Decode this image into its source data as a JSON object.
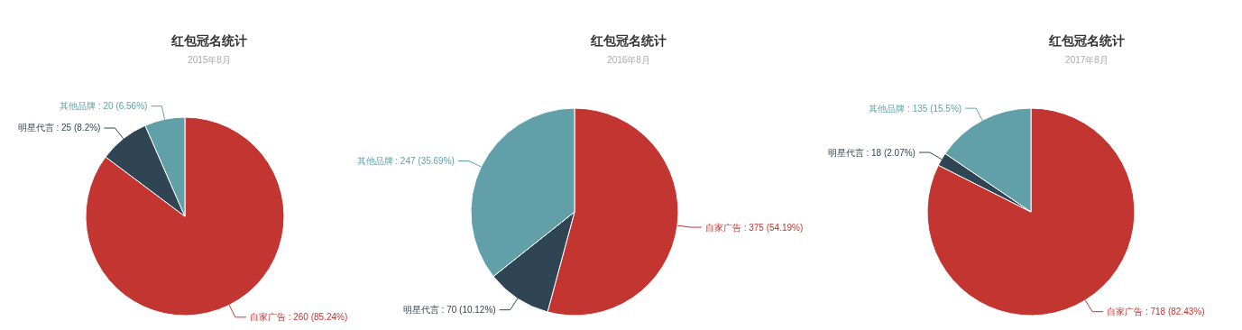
{
  "chart_data": [
    {
      "type": "pie",
      "title": "红包冠名统计",
      "subtitle": "2015年8月",
      "categories": [
        "自家广告",
        "明星代言",
        "其他品牌"
      ],
      "values": [
        260,
        25,
        20
      ],
      "colors": [
        "#c23531",
        "#2f4554",
        "#61a0a8"
      ],
      "value_labels": [
        "260 (85.24%)",
        "25 (8.2%)",
        "20 (6.56%)"
      ]
    },
    {
      "type": "pie",
      "title": "红包冠名统计",
      "subtitle": "2016年8月",
      "categories": [
        "自家广告",
        "明星代言",
        "其他品牌"
      ],
      "values": [
        375,
        70,
        247
      ],
      "colors": [
        "#c23531",
        "#2f4554",
        "#61a0a8"
      ],
      "value_labels": [
        "375 (54.19%)",
        "70 (10.12%)",
        "247 (35.69%)"
      ]
    },
    {
      "type": "pie",
      "title": "红包冠名统计",
      "subtitle": "2017年8月",
      "categories": [
        "自家广告",
        "明星代言",
        "其他品牌"
      ],
      "values": [
        718,
        18,
        135
      ],
      "colors": [
        "#c23531",
        "#2f4554",
        "#61a0a8"
      ],
      "value_labels": [
        "718 (82.43%)",
        "18 (2.07%)",
        "135 (15.5%)"
      ]
    }
  ]
}
